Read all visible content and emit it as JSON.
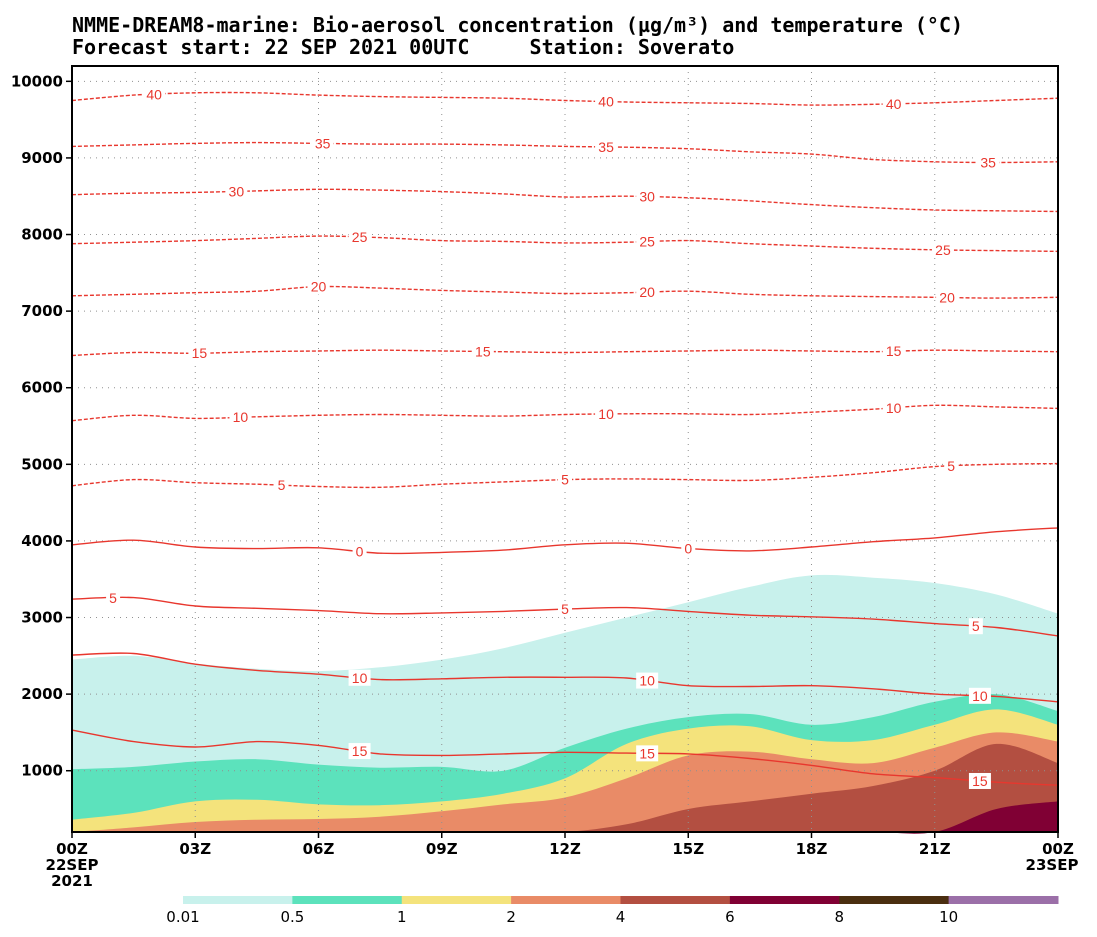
{
  "title_line1": "NMME-DREAM8-marine: Bio-aerosol concentration (µg/m³) and temperature (°C)",
  "title_line2": "Forecast start: 22 SEP 2021 00UTC     Station: Soverato",
  "chart_data": {
    "type": "contour",
    "x_ticks": [
      "00Z",
      "03Z",
      "06Z",
      "09Z",
      "12Z",
      "15Z",
      "18Z",
      "21Z",
      "00Z"
    ],
    "x_tick_sub": {
      "first": [
        "22SEP",
        "2021"
      ],
      "last": [
        "23SEP"
      ]
    },
    "xlim_hours": [
      0,
      24
    ],
    "y_ticks": [
      1000,
      2000,
      3000,
      4000,
      5000,
      6000,
      7000,
      8000,
      9000,
      10000
    ],
    "ylim": [
      200,
      10200
    ],
    "grid": true,
    "temperature_contours": [
      {
        "level": 40,
        "negative": true,
        "y": [
          9750,
          9820,
          9850,
          9850,
          9820,
          9800,
          9790,
          9780,
          9750,
          9730,
          9720,
          9710,
          9690,
          9700,
          9720,
          9750,
          9780
        ],
        "labels": [
          2,
          13,
          20
        ]
      },
      {
        "level": 35,
        "negative": true,
        "y": [
          9150,
          9170,
          9190,
          9200,
          9190,
          9180,
          9180,
          9170,
          9150,
          9140,
          9120,
          9080,
          9050,
          8980,
          8950,
          8940,
          8950
        ],
        "labels": [
          6.1,
          13,
          22.3
        ]
      },
      {
        "level": 30,
        "negative": true,
        "y": [
          8520,
          8540,
          8550,
          8570,
          8590,
          8580,
          8560,
          8530,
          8490,
          8500,
          8480,
          8440,
          8390,
          8350,
          8320,
          8310,
          8300
        ],
        "labels": [
          4,
          14
        ]
      },
      {
        "level": 25,
        "negative": true,
        "y": [
          7880,
          7900,
          7920,
          7950,
          7980,
          7960,
          7920,
          7910,
          7890,
          7900,
          7920,
          7880,
          7850,
          7820,
          7800,
          7790,
          7780
        ],
        "labels": [
          7,
          14,
          21.2
        ]
      },
      {
        "level": 20,
        "negative": true,
        "y": [
          7200,
          7220,
          7240,
          7260,
          7320,
          7300,
          7270,
          7250,
          7230,
          7240,
          7260,
          7220,
          7200,
          7190,
          7180,
          7170,
          7180
        ],
        "labels": [
          6,
          14,
          21.3
        ]
      },
      {
        "level": 15,
        "negative": true,
        "y": [
          6420,
          6460,
          6450,
          6470,
          6480,
          6490,
          6480,
          6470,
          6460,
          6470,
          6480,
          6490,
          6480,
          6470,
          6490,
          6480,
          6470
        ],
        "labels": [
          3.1,
          10,
          20
        ]
      },
      {
        "level": 10,
        "negative": true,
        "y": [
          5570,
          5640,
          5600,
          5620,
          5640,
          5650,
          5640,
          5630,
          5650,
          5660,
          5660,
          5650,
          5680,
          5720,
          5770,
          5750,
          5730
        ],
        "labels": [
          4.1,
          13,
          20
        ]
      },
      {
        "level": 5,
        "negative": true,
        "y": [
          4720,
          4800,
          4760,
          4740,
          4710,
          4700,
          4740,
          4770,
          4800,
          4810,
          4800,
          4790,
          4830,
          4890,
          4970,
          5000,
          5010
        ],
        "labels": [
          5.1,
          12,
          21.4
        ]
      },
      {
        "level": 0,
        "negative": false,
        "y": [
          3950,
          4010,
          3920,
          3900,
          3910,
          3840,
          3850,
          3880,
          3950,
          3970,
          3900,
          3870,
          3920,
          3990,
          4040,
          4120,
          4170
        ],
        "labels": [
          7,
          15
        ]
      },
      {
        "level": 5,
        "negative": false,
        "y": [
          3240,
          3260,
          3150,
          3120,
          3090,
          3050,
          3060,
          3080,
          3110,
          3130,
          3080,
          3030,
          3010,
          2980,
          2920,
          2870,
          2760
        ],
        "labels": [
          1,
          12,
          22
        ]
      },
      {
        "level": 10,
        "negative": false,
        "y": [
          2510,
          2530,
          2390,
          2310,
          2260,
          2190,
          2200,
          2220,
          2220,
          2210,
          2110,
          2100,
          2110,
          2070,
          2000,
          1970,
          1900
        ],
        "labels": [
          7,
          14,
          22.1
        ]
      },
      {
        "level": 15,
        "negative": false,
        "y": [
          1530,
          1380,
          1310,
          1380,
          1330,
          1220,
          1200,
          1220,
          1240,
          1230,
          1220,
          1160,
          1070,
          960,
          910,
          850,
          810
        ],
        "labels": [
          7,
          14,
          22.1
        ]
      }
    ],
    "concentration_fill_bounds": [
      {
        "level": 0.01,
        "y_top": [
          2450,
          2500,
          2400,
          2330,
          2300,
          2350,
          2450,
          2600,
          2800,
          3000,
          3200,
          3400,
          3550,
          3520,
          3450,
          3300,
          3050
        ]
      },
      {
        "level": 0.5,
        "y_top": [
          1020,
          1050,
          1120,
          1150,
          1080,
          1040,
          1050,
          1000,
          1300,
          1550,
          1700,
          1740,
          1600,
          1700,
          1900,
          2000,
          1780
        ]
      },
      {
        "level": 1,
        "y_top": [
          360,
          450,
          600,
          620,
          560,
          550,
          600,
          700,
          900,
          1350,
          1550,
          1580,
          1400,
          1400,
          1600,
          1800,
          1600
        ]
      },
      {
        "level": 2,
        "y_top": [
          200,
          260,
          330,
          360,
          370,
          400,
          470,
          560,
          650,
          900,
          1200,
          1250,
          1150,
          1100,
          1300,
          1500,
          1380
        ]
      },
      {
        "level": 4,
        "y_top": [
          200,
          200,
          200,
          200,
          200,
          200,
          200,
          200,
          200,
          300,
          500,
          600,
          700,
          800,
          1000,
          1350,
          1100
        ]
      },
      {
        "level": 6,
        "y_top": [
          200,
          200,
          200,
          200,
          200,
          200,
          200,
          200,
          200,
          200,
          200,
          200,
          200,
          200,
          200,
          500,
          600
        ]
      }
    ],
    "colorbar": {
      "levels": [
        "0.01",
        "0.5",
        "1",
        "2",
        "4",
        "6",
        "8",
        "10"
      ],
      "colors": [
        "#c8f1ec",
        "#5ce2bc",
        "#f4e37c",
        "#e98b67",
        "#b34f41",
        "#800034",
        "#4a2e10",
        "#9b6fa8"
      ]
    },
    "colors": {
      "temperature_line": "#e8372e",
      "grid": "#909090"
    }
  }
}
